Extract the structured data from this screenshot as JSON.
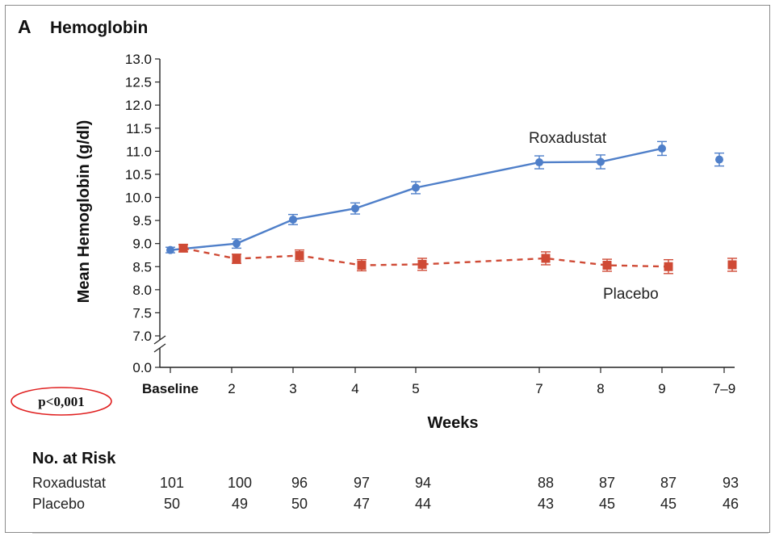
{
  "panel": {
    "letter": "A",
    "title": "Hemoglobin"
  },
  "colors": {
    "roxadustat": "#4f7fc9",
    "placebo": "#cf4a35",
    "axis": "#222222",
    "highlight": "#e02020"
  },
  "annotation": {
    "p_value": "p<0,001"
  },
  "chart_data": {
    "type": "line",
    "title": "Hemoglobin",
    "xlabel": "Weeks",
    "ylabel": "Mean Hemoglobin (g/dl)",
    "ylim": [
      7.0,
      13.0
    ],
    "y_break_baseline": "0.0",
    "yticks": [
      "13.0",
      "12.5",
      "12.0",
      "11.5",
      "11.0",
      "10.5",
      "10.0",
      "9.5",
      "9.0",
      "8.5",
      "8.0",
      "7.5",
      "7.0"
    ],
    "categories": [
      "Baseline",
      "2",
      "3",
      "4",
      "5",
      "7",
      "8",
      "9",
      "7–9"
    ],
    "grid": false,
    "series": [
      {
        "name": "Roxadustat",
        "style": "solid-circle",
        "values": [
          8.86,
          9.0,
          9.52,
          9.76,
          10.21,
          10.76,
          10.77,
          11.06,
          10.82
        ],
        "error": [
          0.06,
          0.1,
          0.11,
          0.12,
          0.13,
          0.14,
          0.15,
          0.15,
          0.14
        ],
        "connect_last": false
      },
      {
        "name": "Placebo",
        "style": "dashed-square",
        "values": [
          8.9,
          8.67,
          8.74,
          8.53,
          8.55,
          8.68,
          8.53,
          8.5,
          8.54
        ],
        "error": [
          0.08,
          0.1,
          0.12,
          0.12,
          0.13,
          0.14,
          0.13,
          0.15,
          0.14
        ],
        "connect_last": false
      }
    ]
  },
  "risk_table": {
    "header": "No. at Risk",
    "rows": [
      {
        "label": "Roxadustat",
        "values": [
          "101",
          "100",
          "96",
          "97",
          "94",
          "88",
          "87",
          "87",
          "93"
        ]
      },
      {
        "label": "Placebo",
        "values": [
          "50",
          "49",
          "50",
          "47",
          "44",
          "43",
          "45",
          "45",
          "46"
        ]
      }
    ]
  }
}
